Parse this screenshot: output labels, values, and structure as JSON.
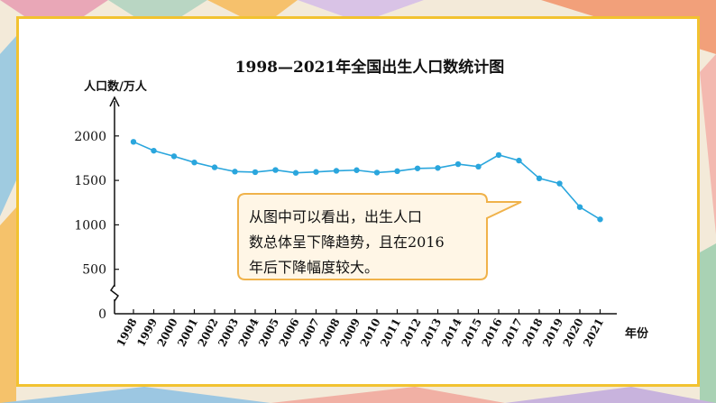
{
  "chart_data": {
    "type": "line",
    "title": "1998—2021年全国出生人口数统计图",
    "ylabel": "人口数/万人",
    "xlabel": "年份",
    "categories": [
      "1998",
      "1999",
      "2000",
      "2001",
      "2002",
      "2003",
      "2004",
      "2005",
      "2006",
      "2007",
      "2008",
      "2009",
      "2010",
      "2011",
      "2012",
      "2013",
      "2014",
      "2015",
      "2016",
      "2017",
      "2018",
      "2019",
      "2020",
      "2021"
    ],
    "series": [
      {
        "values": [
          1934,
          1834,
          1771,
          1702,
          1647,
          1599,
          1593,
          1617,
          1585,
          1595,
          1608,
          1615,
          1588,
          1604,
          1635,
          1640,
          1683,
          1655,
          1786,
          1723,
          1523,
          1465,
          1200,
          1062
        ]
      }
    ],
    "yticks": [
      "0",
      "500",
      "1000",
      "1500",
      "2000"
    ],
    "ylim": [
      0,
      2250
    ],
    "axis_break": true,
    "colors": {
      "line": "#2aa6dd",
      "marker": "#2aa6dd",
      "frame": "#f2c230",
      "callout_border": "#f0b24a",
      "callout_fill": "#fff6e6"
    }
  },
  "callout": {
    "line1": "从图中可以看出，出生人口",
    "line2": "数总体呈下降趋势，且在2016",
    "line3": "年后下降幅度较大。"
  }
}
